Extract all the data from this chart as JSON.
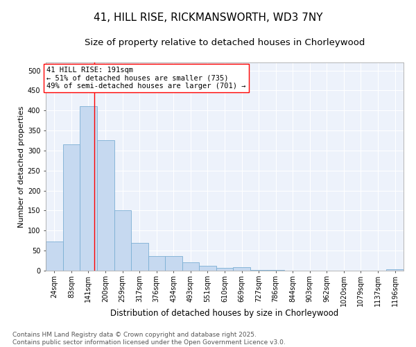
{
  "title1": "41, HILL RISE, RICKMANSWORTH, WD3 7NY",
  "title2": "Size of property relative to detached houses in Chorleywood",
  "xlabel": "Distribution of detached houses by size in Chorleywood",
  "ylabel": "Number of detached properties",
  "bin_labels": [
    "24sqm",
    "83sqm",
    "141sqm",
    "200sqm",
    "259sqm",
    "317sqm",
    "376sqm",
    "434sqm",
    "493sqm",
    "551sqm",
    "610sqm",
    "669sqm",
    "727sqm",
    "786sqm",
    "844sqm",
    "903sqm",
    "962sqm",
    "1020sqm",
    "1079sqm",
    "1137sqm",
    "1196sqm"
  ],
  "bin_edges": [
    24,
    83,
    141,
    200,
    259,
    317,
    376,
    434,
    493,
    551,
    610,
    669,
    727,
    786,
    844,
    903,
    962,
    1020,
    1079,
    1137,
    1196,
    1255
  ],
  "bar_heights": [
    72,
    315,
    410,
    325,
    150,
    70,
    37,
    37,
    20,
    13,
    7,
    8,
    2,
    1,
    0,
    0,
    0,
    0,
    0,
    0,
    3
  ],
  "bar_color": "#c6d9f0",
  "bar_edge_color": "#7bafd4",
  "red_line_x": 191,
  "annotation_text": "41 HILL RISE: 191sqm\n← 51% of detached houses are smaller (735)\n49% of semi-detached houses are larger (701) →",
  "ylim": [
    0,
    520
  ],
  "yticks": [
    0,
    50,
    100,
    150,
    200,
    250,
    300,
    350,
    400,
    450,
    500
  ],
  "background_color": "#edf2fb",
  "grid_color": "#ffffff",
  "footnote": "Contains HM Land Registry data © Crown copyright and database right 2025.\nContains public sector information licensed under the Open Government Licence v3.0.",
  "title1_fontsize": 11,
  "title2_fontsize": 9.5,
  "xlabel_fontsize": 8.5,
  "ylabel_fontsize": 8,
  "annotation_fontsize": 7.5,
  "footnote_fontsize": 6.5,
  "tick_fontsize": 7
}
